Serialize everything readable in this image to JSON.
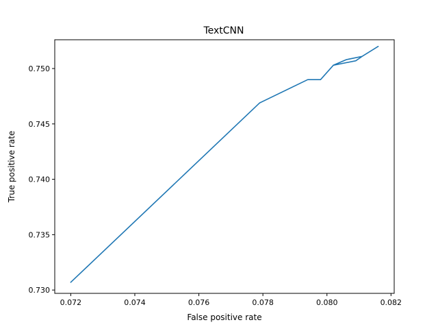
{
  "chart_data": {
    "type": "line",
    "title": "TextCNN",
    "xlabel": "False positive rate",
    "ylabel": "True positive rate",
    "xlim": [
      0.0715,
      0.0821
    ],
    "ylim": [
      0.7297,
      0.7526
    ],
    "xticks": [
      0.072,
      0.074,
      0.076,
      0.078,
      0.08,
      0.082
    ],
    "xtick_labels": [
      "0.072",
      "0.074",
      "0.076",
      "0.078",
      "0.080",
      "0.082"
    ],
    "yticks": [
      0.73,
      0.735,
      0.74,
      0.745,
      0.75
    ],
    "ytick_labels": [
      "0.730",
      "0.735",
      "0.740",
      "0.745",
      "0.750"
    ],
    "grid": false,
    "series": [
      {
        "color": "#1f77b4",
        "x": [
          0.072,
          0.0779,
          0.0794,
          0.0795,
          0.0798,
          0.0802,
          0.0806,
          0.0811,
          0.0816,
          0.0811,
          0.0809,
          0.0802
        ],
        "y": [
          0.7307,
          0.7469,
          0.749,
          0.749,
          0.749,
          0.7503,
          0.7508,
          0.7511,
          0.752,
          0.7511,
          0.7507,
          0.7503
        ]
      }
    ]
  }
}
